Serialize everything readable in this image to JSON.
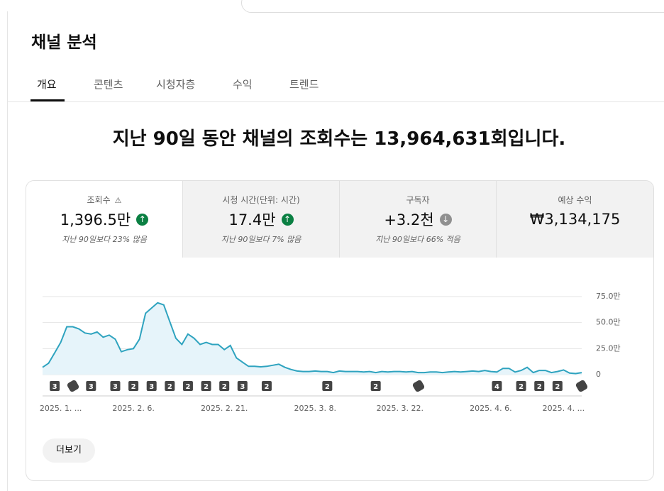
{
  "header": {
    "title": "채널 분석"
  },
  "tabs": [
    "개요",
    "콘텐츠",
    "시청자층",
    "수익",
    "트렌드"
  ],
  "headline": "지난 90일 동안 채널의 조회수는 13,964,631회입니다.",
  "metrics": [
    {
      "label": "조회수",
      "value": "1,396.5만",
      "delta": "지난 90일보다 23% 많음",
      "trend": "up"
    },
    {
      "label": "시청 시간(단위: 시간)",
      "value": "17.4만",
      "delta": "지난 90일보다 7% 많음",
      "trend": "up"
    },
    {
      "label": "구독자",
      "value": "+3.2천",
      "delta": "지난 90일보다 66% 적음",
      "trend": "down"
    },
    {
      "label": "예상 수익",
      "value": "₩3,134,175"
    }
  ],
  "chart_data": {
    "type": "line",
    "color": "#2ea3bf",
    "area_color": "#e6f4fa",
    "grid": true,
    "ylim": [
      0,
      750000
    ],
    "yticks": [
      {
        "value": 0,
        "label": "0"
      },
      {
        "value": 250000,
        "label": "25.0만"
      },
      {
        "value": 500000,
        "label": "50.0만"
      },
      {
        "value": 750000,
        "label": "75.0만"
      }
    ],
    "categories": [
      null,
      null,
      null,
      "2025. 1. ...",
      null,
      null,
      null,
      null,
      null,
      null,
      null,
      null,
      null,
      null,
      null,
      "2025. 2. 6.",
      null,
      null,
      null,
      null,
      null,
      null,
      null,
      null,
      null,
      null,
      null,
      null,
      null,
      null,
      "2025. 2. 21.",
      null,
      null,
      null,
      null,
      null,
      null,
      null,
      null,
      null,
      null,
      null,
      null,
      null,
      null,
      "2025. 3. 8.",
      null,
      null,
      null,
      null,
      null,
      null,
      null,
      null,
      null,
      null,
      null,
      null,
      null,
      "2025. 3. 22.",
      null,
      null,
      null,
      null,
      null,
      null,
      null,
      null,
      null,
      null,
      null,
      null,
      null,
      null,
      "2025. 4. 6.",
      null,
      null,
      null,
      null,
      null,
      null,
      null,
      null,
      null,
      null,
      null,
      "2025. 4. ...",
      null,
      null,
      null
    ],
    "values": [
      70000,
      110000,
      210000,
      310000,
      460000,
      460000,
      440000,
      400000,
      390000,
      410000,
      360000,
      380000,
      340000,
      220000,
      240000,
      250000,
      340000,
      590000,
      640000,
      690000,
      670000,
      510000,
      350000,
      290000,
      390000,
      350000,
      290000,
      310000,
      290000,
      290000,
      240000,
      280000,
      160000,
      120000,
      80000,
      80000,
      75000,
      80000,
      90000,
      100000,
      70000,
      50000,
      35000,
      30000,
      30000,
      35000,
      30000,
      30000,
      20000,
      35000,
      30000,
      30000,
      30000,
      25000,
      30000,
      20000,
      30000,
      25000,
      30000,
      30000,
      25000,
      30000,
      20000,
      20000,
      25000,
      25000,
      20000,
      25000,
      30000,
      25000,
      30000,
      35000,
      30000,
      40000,
      30000,
      25000,
      60000,
      60000,
      25000,
      40000,
      70000,
      20000,
      40000,
      40000,
      20000,
      30000,
      45000,
      15000,
      10000,
      20000
    ],
    "upload_counts": [
      null,
      null,
      3,
      null,
      null,
      null,
      null,
      null,
      3,
      null,
      null,
      null,
      3,
      null,
      null,
      2,
      null,
      null,
      3,
      null,
      null,
      2,
      null,
      null,
      2,
      null,
      null,
      2,
      null,
      null,
      2,
      null,
      null,
      3,
      null,
      null,
      null,
      2,
      null,
      null,
      null,
      null,
      null,
      null,
      null,
      null,
      null,
      2,
      null,
      null,
      null,
      null,
      null,
      null,
      null,
      2,
      null,
      null,
      null,
      null,
      null,
      null,
      null,
      null,
      null,
      null,
      null,
      null,
      null,
      null,
      null,
      null,
      null,
      null,
      null,
      4,
      null,
      null,
      null,
      2,
      null,
      null,
      2,
      null,
      null,
      2,
      null,
      null,
      null,
      null
    ]
  },
  "more_button": "더보기"
}
